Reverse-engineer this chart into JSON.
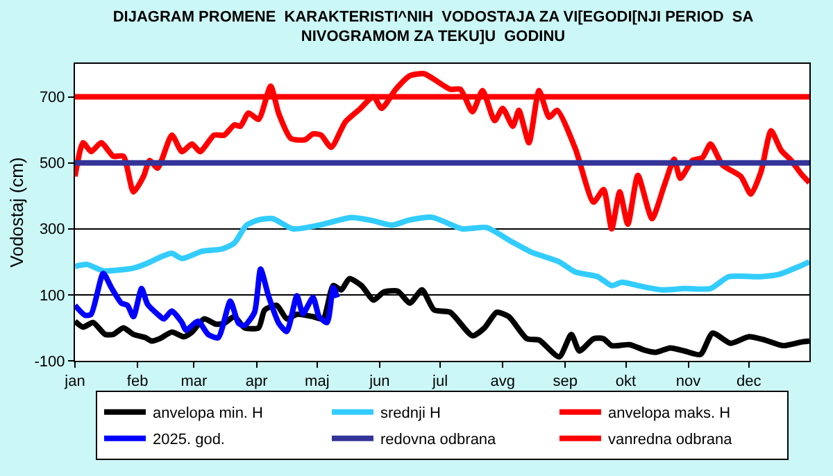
{
  "chart_data": {
    "type": "line",
    "title": "DIJAGRAM PROMENE  KARAKTERISTI^NIH  VODOSTAJA ZA VI[EGODI[NJI PERIOD  SA\nNIVOGRAMOM ZA TEKU]U  GODINU",
    "ylabel": "Vodostaj (cm)",
    "xlim": [
      "--01-01",
      "--12-31"
    ],
    "ylim": [
      -100,
      800
    ],
    "xticks": [
      {
        "value": "--01-01",
        "label": "jan"
      },
      {
        "value": "--02-01",
        "label": "feb"
      },
      {
        "value": "--03-01",
        "label": "mar"
      },
      {
        "value": "--04-01",
        "label": "apr"
      },
      {
        "value": "--05-01",
        "label": "maj"
      },
      {
        "value": "--06-01",
        "label": "jun"
      },
      {
        "value": "--07-01",
        "label": "jul"
      },
      {
        "value": "--08-01",
        "label": "avg"
      },
      {
        "value": "--09-01",
        "label": "sep"
      },
      {
        "value": "--10-01",
        "label": "okt"
      },
      {
        "value": "--11-01",
        "label": "nov"
      },
      {
        "value": "--12-01",
        "label": "dec"
      }
    ],
    "yticks": [
      -100,
      100,
      300,
      500,
      700
    ],
    "grid": "y",
    "legend": "bottom",
    "marker": "none",
    "line_style": "solid",
    "series": [
      {
        "name": "anvelopa min. H",
        "color": "#000000",
        "x": [
          "--01-01",
          "--01-05",
          "--01-10",
          "--01-16",
          "--01-20",
          "--01-25",
          "--01-30",
          "--02-05",
          "--02-08",
          "--02-12",
          "--02-18",
          "--02-24",
          "--02-28",
          "--03-06",
          "--03-12",
          "--03-16",
          "--03-21",
          "--03-26",
          "--04-02",
          "--04-05",
          "--04-11",
          "--04-16",
          "--04-21",
          "--04-29",
          "--05-04",
          "--05-09",
          "--05-13",
          "--05-17",
          "--05-23",
          "--05-29",
          "--06-03",
          "--06-10",
          "--06-16",
          "--06-22",
          "--06-28",
          "--07-06",
          "--07-17",
          "--07-23",
          "--07-29",
          "--08-04",
          "--08-13",
          "--08-19",
          "--08-29",
          "--09-04",
          "--09-08",
          "--09-15",
          "--09-20",
          "--09-24",
          "--10-03",
          "--10-10",
          "--10-16",
          "--10-23",
          "--10-30",
          "--11-07",
          "--11-13",
          "--11-22",
          "--12-01",
          "--12-09",
          "--12-18",
          "--12-27",
          "--12-31"
        ],
        "values": [
          20,
          2,
          16,
          -20,
          -20,
          0,
          -20,
          -30,
          -40,
          -33,
          -13,
          -27,
          -13,
          27,
          11,
          14,
          34,
          0,
          0,
          54,
          68,
          27,
          41,
          34,
          27,
          128,
          115,
          149,
          128,
          84,
          108,
          111,
          75,
          115,
          54,
          47,
          -24,
          0,
          47,
          34,
          -33,
          -37,
          -88,
          -20,
          -70,
          -33,
          -33,
          -54,
          -51,
          -67,
          -74,
          -61,
          -70,
          -81,
          -16,
          -47,
          -27,
          -37,
          -54,
          -43,
          -40
        ]
      },
      {
        "name": "srednji H",
        "color": "#33ccff",
        "x": [
          "--01-01",
          "--01-07",
          "--01-15",
          "--01-30",
          "--02-06",
          "--02-13",
          "--02-18",
          "--02-23",
          "--03-05",
          "--03-15",
          "--03-21",
          "--03-27",
          "--04-02",
          "--04-09",
          "--04-19",
          "--05-02",
          "--05-18",
          "--05-29",
          "--06-07",
          "--06-16",
          "--06-27",
          "--07-12",
          "--07-24",
          "--08-06",
          "--08-15",
          "--08-29",
          "--09-06",
          "--09-17",
          "--09-24",
          "--09-29",
          "--10-07",
          "--10-19",
          "--10-30",
          "--11-12",
          "--11-21",
          "--12-07",
          "--12-16",
          "--12-27",
          "--12-31"
        ],
        "values": [
          186,
          192,
          173,
          181,
          196,
          216,
          226,
          210,
          232,
          239,
          257,
          311,
          327,
          331,
          300,
          311,
          334,
          324,
          311,
          327,
          335,
          300,
          304,
          259,
          230,
          200,
          169,
          155,
          128,
          138,
          128,
          115,
          119,
          119,
          155,
          155,
          162,
          189,
          200
        ]
      },
      {
        "name": "anvelopa maks. H",
        "color": "#ff0000",
        "x": [
          "--01-01",
          "--01-05",
          "--01-09",
          "--01-14",
          "--01-20",
          "--01-25",
          "--01-30",
          "--02-04",
          "--02-07",
          "--02-11",
          "--02-18",
          "--02-23",
          "--02-28",
          "--03-04",
          "--03-11",
          "--03-16",
          "--03-21",
          "--03-24",
          "--03-28",
          "--04-02",
          "--04-08",
          "--04-12",
          "--04-18",
          "--04-25",
          "--04-29",
          "--05-03",
          "--05-08",
          "--05-15",
          "--05-22",
          "--05-29",
          "--06-02",
          "--06-09",
          "--06-16",
          "--06-23",
          "--06-27",
          "--07-06",
          "--07-11",
          "--07-17",
          "--07-22",
          "--07-28",
          "--08-01",
          "--08-06",
          "--08-09",
          "--08-14",
          "--08-19",
          "--08-24",
          "--08-28",
          "--09-06",
          "--09-15",
          "--09-20",
          "--09-24",
          "--09-28",
          "--10-02",
          "--10-07",
          "--10-14",
          "--10-20",
          "--10-25",
          "--10-28",
          "--11-03",
          "--11-08",
          "--11-12",
          "--11-18",
          "--11-27",
          "--12-02",
          "--12-07",
          "--12-12",
          "--12-17",
          "--12-22",
          "--12-27",
          "--12-31"
        ],
        "values": [
          459,
          561,
          534,
          561,
          520,
          520,
          412,
          459,
          507,
          484,
          584,
          534,
          557,
          534,
          584,
          584,
          615,
          611,
          651,
          632,
          732,
          649,
          574,
          570,
          588,
          584,
          547,
          624,
          662,
          700,
          665,
          723,
          764,
          770,
          757,
          723,
          723,
          655,
          719,
          628,
          665,
          611,
          659,
          561,
          719,
          638,
          659,
          543,
          381,
          419,
          300,
          412,
          314,
          462,
          331,
          430,
          511,
          453,
          507,
          516,
          557,
          493,
          459,
          405,
          473,
          597,
          538,
          507,
          466,
          440
        ]
      },
      {
        "name": "2025. god.",
        "color": "#0000ff",
        "x": [
          "--01-01",
          "--01-06",
          "--01-09",
          "--01-15",
          "--01-19",
          "--01-24",
          "--01-27",
          "--01-30",
          "--02-03",
          "--02-06",
          "--02-11",
          "--02-14",
          "--02-18",
          "--02-23",
          "--02-25",
          "--03-03",
          "--03-08",
          "--03-13",
          "--03-19",
          "--03-23",
          "--03-26",
          "--03-31",
          "--04-03",
          "--04-07",
          "--04-12",
          "--04-16",
          "--04-21",
          "--04-24",
          "--04-29",
          "--05-02",
          "--05-06",
          "--05-09",
          "--05-11"
        ],
        "values": [
          68,
          38,
          41,
          165,
          122,
          75,
          68,
          34,
          119,
          71,
          41,
          27,
          51,
          16,
          -7,
          20,
          -20,
          -30,
          81,
          14,
          7,
          47,
          178,
          95,
          14,
          -11,
          97,
          43,
          92,
          34,
          16,
          122,
          92
        ]
      }
    ],
    "ref_lines": [
      {
        "axis": "y",
        "value": 500,
        "label": "redovna odbrana",
        "color": "#333399"
      },
      {
        "axis": "y",
        "value": 700,
        "label": "vanredna odbrana",
        "color": "#ff0000"
      }
    ]
  }
}
